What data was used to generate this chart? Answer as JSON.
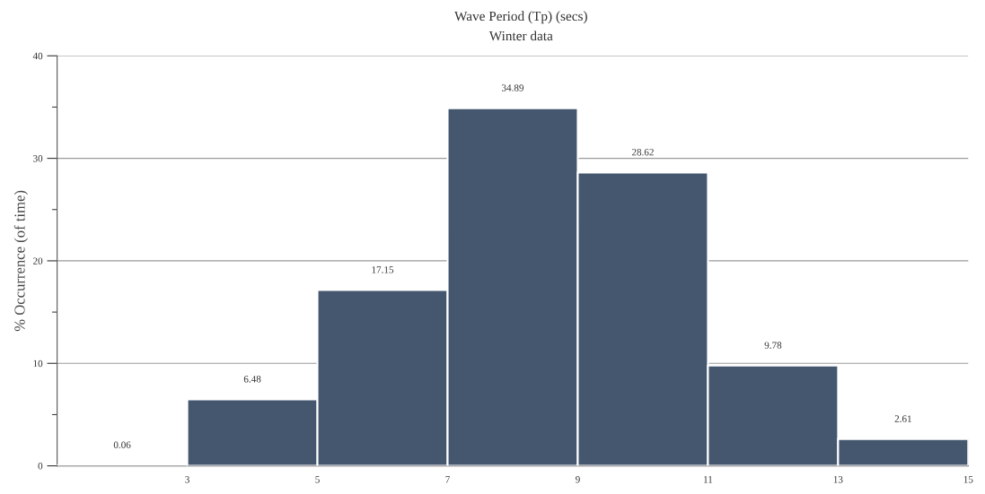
{
  "chart_data": {
    "type": "histogram",
    "title": "Wave Period (Tp) (secs)",
    "subtitle": "Winter data",
    "ylabel": "% Occurrence (of time)",
    "bins": [
      1,
      3,
      5,
      7,
      9,
      11,
      13,
      15
    ],
    "values": [
      0.06,
      6.48,
      17.15,
      34.89,
      28.62,
      9.78,
      2.61
    ],
    "color": "#44576f",
    "xlim": [
      1,
      15
    ],
    "xticks": [
      3,
      5,
      7,
      9,
      11,
      13,
      15
    ],
    "ylim": [
      0,
      40
    ],
    "yticks": [
      0,
      10,
      20,
      30,
      40
    ],
    "grid": "y",
    "data_labels": true
  }
}
